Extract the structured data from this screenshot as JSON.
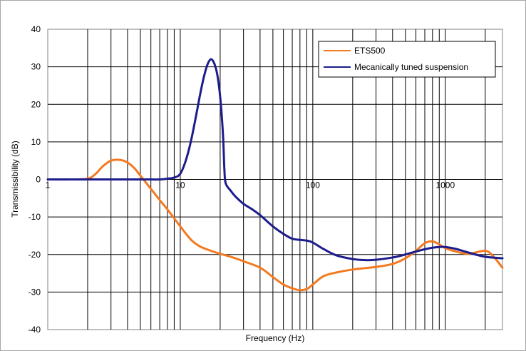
{
  "chart_data": {
    "type": "line",
    "title": "",
    "xlabel": "Frequency (Hz)",
    "ylabel": "Transmissibility (dB)",
    "x_scale": "log",
    "xlim": [
      1,
      2700
    ],
    "ylim": [
      -40,
      40
    ],
    "y_ticks": [
      -40,
      -30,
      -20,
      -10,
      0,
      10,
      20,
      30,
      40
    ],
    "x_tick_labels": [
      {
        "value": 1,
        "label": "1"
      },
      {
        "value": 10,
        "label": "10"
      },
      {
        "value": 100,
        "label": "100"
      },
      {
        "value": 1000,
        "label": "1000"
      }
    ],
    "grid": true,
    "legend_position": "top-right",
    "series": [
      {
        "name": "ETS500",
        "color": "#f37a1f",
        "points": [
          [
            1,
            0
          ],
          [
            1.5,
            0
          ],
          [
            2,
            0.2
          ],
          [
            2.3,
            1.5
          ],
          [
            2.6,
            3.5
          ],
          [
            3,
            5
          ],
          [
            3.5,
            5.2
          ],
          [
            4,
            4.5
          ],
          [
            4.5,
            3
          ],
          [
            5,
            1
          ],
          [
            6,
            -2.5
          ],
          [
            7,
            -5.5
          ],
          [
            8,
            -8
          ],
          [
            10,
            -12.5
          ],
          [
            12,
            -16
          ],
          [
            14,
            -17.8
          ],
          [
            17,
            -19
          ],
          [
            20,
            -19.8
          ],
          [
            25,
            -20.8
          ],
          [
            30,
            -21.8
          ],
          [
            40,
            -23.5
          ],
          [
            50,
            -26
          ],
          [
            60,
            -28
          ],
          [
            70,
            -29
          ],
          [
            80,
            -29.5
          ],
          [
            90,
            -29.2
          ],
          [
            100,
            -28
          ],
          [
            120,
            -25.8
          ],
          [
            150,
            -24.8
          ],
          [
            200,
            -24
          ],
          [
            300,
            -23.3
          ],
          [
            400,
            -22.5
          ],
          [
            500,
            -21
          ],
          [
            600,
            -19
          ],
          [
            700,
            -17
          ],
          [
            800,
            -16.5
          ],
          [
            900,
            -17.3
          ],
          [
            1000,
            -18.3
          ],
          [
            1200,
            -19.2
          ],
          [
            1500,
            -19.8
          ],
          [
            2000,
            -19
          ],
          [
            2300,
            -20.5
          ],
          [
            2700,
            -23.5
          ]
        ]
      },
      {
        "name": "Mecanically tuned suspension",
        "color": "#1c1c8c",
        "points": [
          [
            1,
            0
          ],
          [
            2,
            0
          ],
          [
            5,
            0
          ],
          [
            7,
            0
          ],
          [
            8,
            0.2
          ],
          [
            9,
            0.5
          ],
          [
            10,
            1.5
          ],
          [
            11,
            5
          ],
          [
            12,
            10
          ],
          [
            13,
            16
          ],
          [
            14,
            22
          ],
          [
            15,
            27
          ],
          [
            16,
            30.5
          ],
          [
            17,
            32
          ],
          [
            18,
            31
          ],
          [
            19,
            28
          ],
          [
            20,
            22
          ],
          [
            21,
            12
          ],
          [
            21.5,
            3
          ],
          [
            22,
            -1
          ],
          [
            24,
            -3
          ],
          [
            26,
            -4.5
          ],
          [
            30,
            -6.5
          ],
          [
            35,
            -8
          ],
          [
            40,
            -9.5
          ],
          [
            50,
            -12.5
          ],
          [
            60,
            -14.5
          ],
          [
            70,
            -15.8
          ],
          [
            80,
            -16.1
          ],
          [
            90,
            -16.3
          ],
          [
            100,
            -16.8
          ],
          [
            120,
            -18.5
          ],
          [
            150,
            -20.2
          ],
          [
            200,
            -21.2
          ],
          [
            250,
            -21.5
          ],
          [
            300,
            -21.4
          ],
          [
            400,
            -20.8
          ],
          [
            500,
            -20
          ],
          [
            600,
            -19.2
          ],
          [
            700,
            -18.6
          ],
          [
            800,
            -18.2
          ],
          [
            900,
            -18
          ],
          [
            1000,
            -18
          ],
          [
            1200,
            -18.5
          ],
          [
            1500,
            -19.5
          ],
          [
            2000,
            -20.6
          ],
          [
            2700,
            -21
          ]
        ]
      }
    ]
  }
}
